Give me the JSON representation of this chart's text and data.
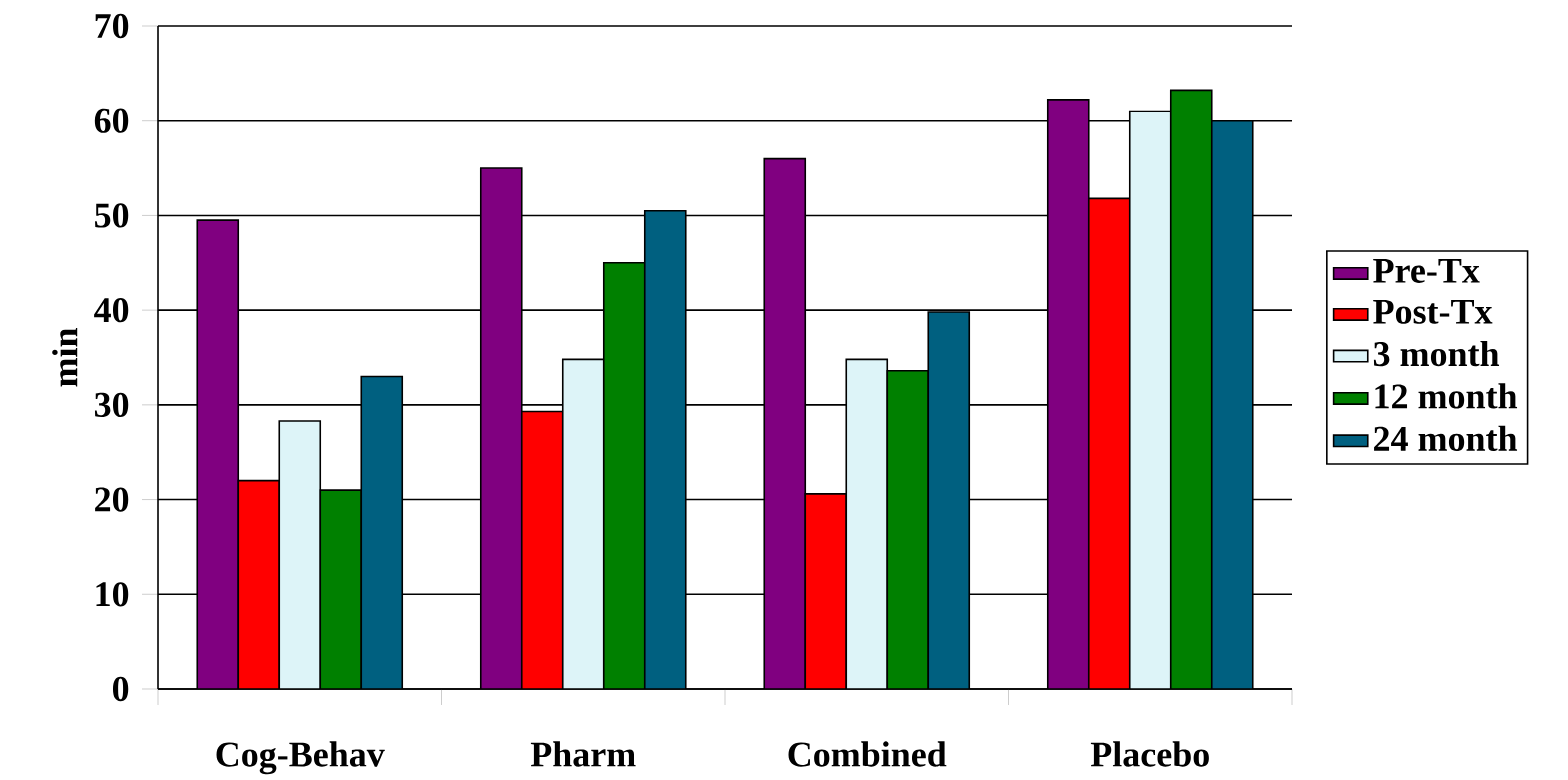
{
  "chart_data": {
    "type": "bar",
    "ylabel": "min",
    "categories": [
      "Cog-Behav",
      "Pharm",
      "Combined",
      "Placebo"
    ],
    "series": [
      {
        "name": "Pre-Tx",
        "color": "#800080",
        "values": [
          49.5,
          55,
          56,
          62.2
        ]
      },
      {
        "name": "Post-Tx",
        "color": "#ff0000",
        "values": [
          22,
          29.3,
          20.6,
          51.8
        ]
      },
      {
        "name": "3 month",
        "color": "#ddf4f8",
        "values": [
          28.3,
          34.8,
          34.8,
          61
        ]
      },
      {
        "name": "12 month",
        "color": "#008000",
        "values": [
          21,
          45,
          33.6,
          63.2
        ]
      },
      {
        "name": "24 month",
        "color": "#006080",
        "values": [
          33,
          50.5,
          39.8,
          60
        ]
      }
    ],
    "ylim": [
      0,
      70
    ],
    "yticks": [
      0,
      10,
      20,
      30,
      40,
      50,
      60,
      70
    ],
    "grid": "y",
    "legend": "right"
  }
}
